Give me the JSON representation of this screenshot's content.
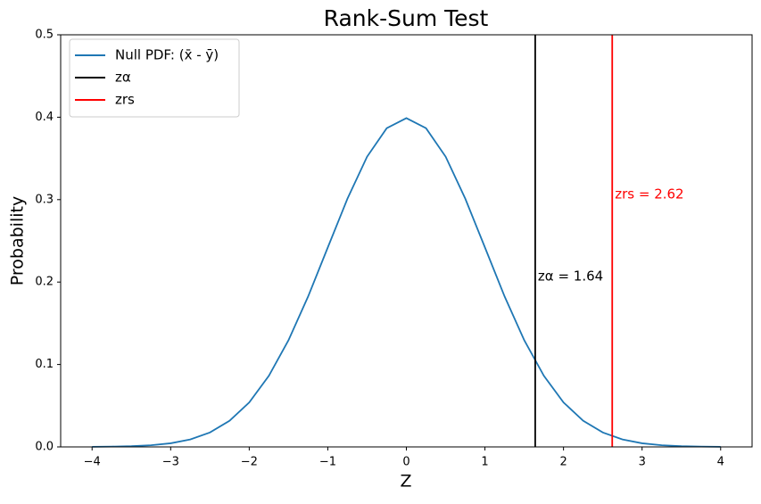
{
  "chart_data": {
    "type": "line",
    "title": "Rank-Sum Test",
    "xlabel": "Z",
    "ylabel": "Probability",
    "x": [
      -4,
      -3.75,
      -3.5,
      -3.25,
      -3,
      -2.75,
      -2.5,
      -2.25,
      -2,
      -1.75,
      -1.5,
      -1.25,
      -1,
      -0.75,
      -0.5,
      -0.25,
      0,
      0.25,
      0.5,
      0.75,
      1,
      1.25,
      1.5,
      1.75,
      2,
      2.25,
      2.5,
      2.75,
      3,
      3.25,
      3.5,
      3.75,
      4
    ],
    "series": [
      {
        "name": "Null PDF: (x̄ - ȳ)",
        "color": "#1f77b4",
        "values": [
          0.0001,
          0.0004,
          0.0009,
          0.002,
          0.0044,
          0.0091,
          0.0175,
          0.0317,
          0.054,
          0.0863,
          0.1295,
          0.1826,
          0.242,
          0.3011,
          0.3521,
          0.3867,
          0.3989,
          0.3867,
          0.3521,
          0.3011,
          0.242,
          0.1826,
          0.1295,
          0.0863,
          0.054,
          0.0317,
          0.0175,
          0.0091,
          0.0044,
          0.002,
          0.0009,
          0.0004,
          0.0001
        ]
      }
    ],
    "vlines": [
      {
        "name": "zα",
        "color": "#000000",
        "x": 1.64,
        "annotation": "zα = 1.64"
      },
      {
        "name": "zrs",
        "color": "#ff0000",
        "x": 2.62,
        "annotation": "zrs = 2.62"
      }
    ],
    "xlim": [
      -4.4,
      4.4
    ],
    "ylim": [
      0,
      0.5
    ],
    "xticks": [
      {
        "value": -4,
        "label": "−4"
      },
      {
        "value": -3,
        "label": "−3"
      },
      {
        "value": -2,
        "label": "−2"
      },
      {
        "value": -1,
        "label": "−1"
      },
      0,
      1,
      2,
      3,
      4
    ],
    "yticks": [
      {
        "value": 0,
        "label": "0.0"
      },
      0.1,
      0.2,
      0.3,
      0.4,
      0.5
    ],
    "legend": "upper left"
  }
}
